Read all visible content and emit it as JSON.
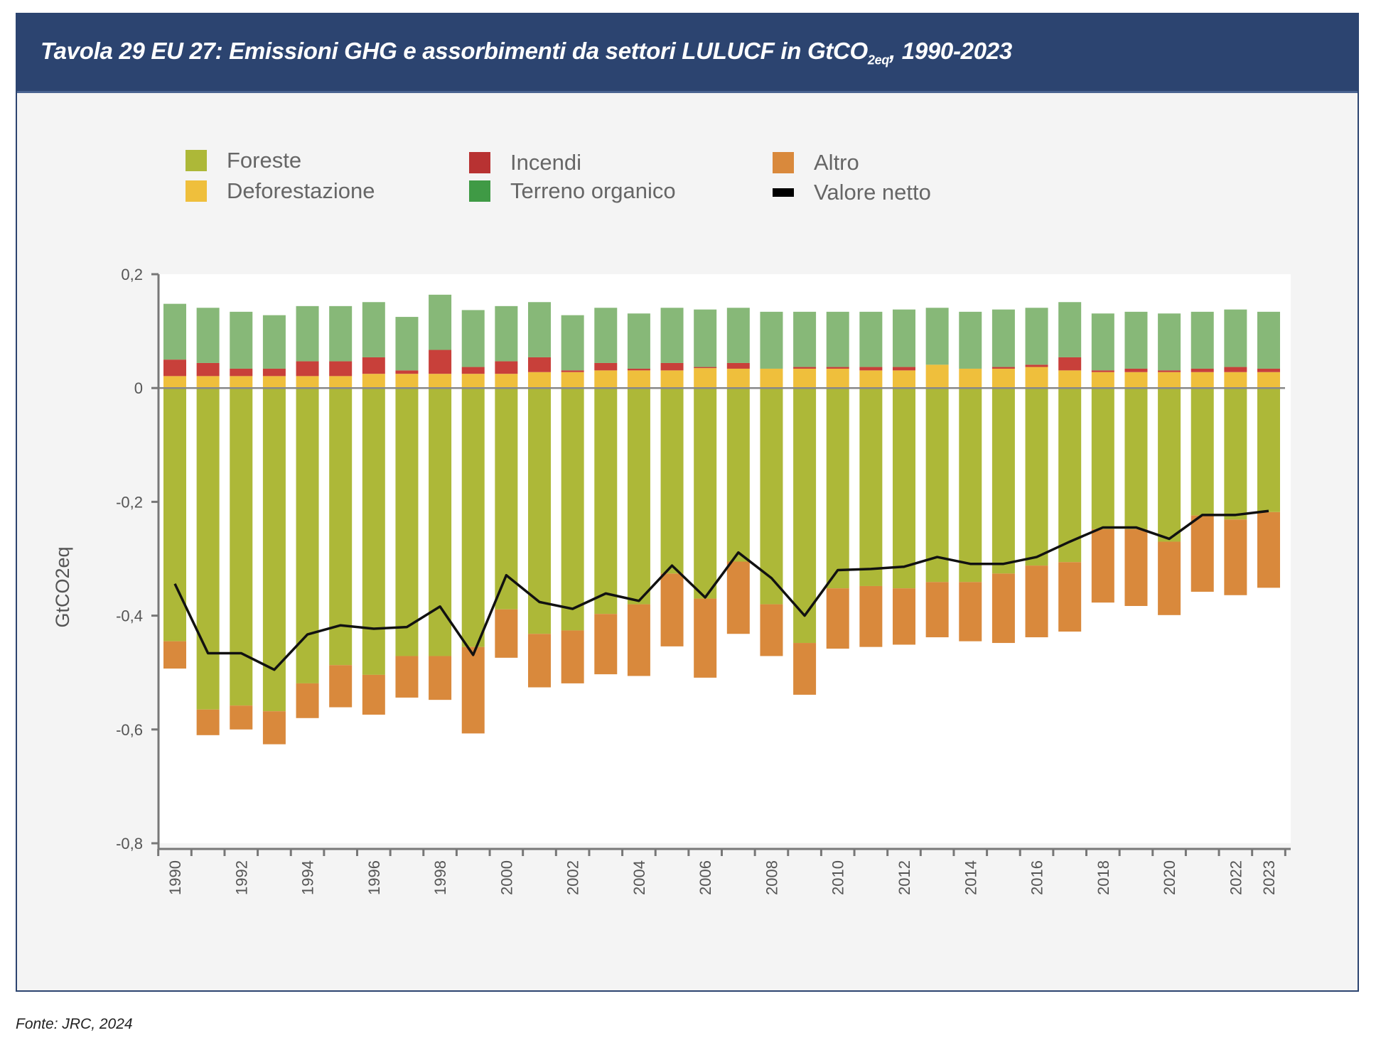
{
  "header": {
    "title_main": "Tavola 29  EU 27: Emissioni GHG e assorbimenti da settori LULUCF in GtCO",
    "title_sub": "2eq",
    "title_end": ", 1990-2023"
  },
  "footer": {
    "source": "Fonte: JRC, 2024"
  },
  "colors": {
    "foreste": "#adb838",
    "deforestazione": "#efbf3c",
    "incendi": "#c8403a",
    "terreno_organico_legend": "#3f9a45",
    "terreno_organico_bar": "#87b878",
    "altro": "#d9893c",
    "valore_netto": "#111111",
    "title_bar": "#2c4470"
  },
  "legend": [
    {
      "key": "foreste",
      "label": "Foreste"
    },
    {
      "key": "deforestazione",
      "label": "Deforestazione"
    },
    {
      "key": "incendi",
      "label": "Incendi"
    },
    {
      "key": "terreno_organico",
      "label": "Terreno organico"
    },
    {
      "key": "altro",
      "label": "Altro"
    },
    {
      "key": "valore_netto",
      "label": "Valore netto"
    }
  ],
  "chart_data": {
    "type": "bar",
    "stacked": true,
    "title": "",
    "xlabel": "",
    "ylabel": "GtCO2eq",
    "ylim": [
      -0.8,
      0.2
    ],
    "yticks": [
      "0,2",
      "0",
      "-0,2",
      "-0,4",
      "-0,6",
      "-0,8"
    ],
    "ytick_values": [
      0.2,
      0,
      -0.2,
      -0.4,
      -0.6,
      -0.8
    ],
    "xtick_labels": [
      "1990",
      "1992",
      "1994",
      "1996",
      "1998",
      "2000",
      "2002",
      "2004",
      "2006",
      "2008",
      "2010",
      "2012",
      "2014",
      "2016",
      "2018",
      "2020",
      "2022",
      "2023"
    ],
    "grid": false,
    "legend_position": "top",
    "categories": [
      1990,
      1991,
      1992,
      1993,
      1994,
      1995,
      1996,
      1997,
      1998,
      1999,
      2000,
      2001,
      2002,
      2003,
      2004,
      2005,
      2006,
      2007,
      2008,
      2009,
      2010,
      2011,
      2012,
      2013,
      2014,
      2015,
      2016,
      2017,
      2018,
      2019,
      2020,
      2021,
      2022,
      2023
    ],
    "series": [
      {
        "name": "Deforestazione",
        "key": "deforestazione",
        "type": "bar",
        "values": [
          0.021,
          0.021,
          0.021,
          0.021,
          0.021,
          0.021,
          0.025,
          0.025,
          0.025,
          0.025,
          0.025,
          0.028,
          0.028,
          0.031,
          0.031,
          0.031,
          0.035,
          0.034,
          0.034,
          0.034,
          0.034,
          0.031,
          0.031,
          0.041,
          0.034,
          0.034,
          0.037,
          0.031,
          0.028,
          0.028,
          0.028,
          0.028,
          0.028,
          0.028
        ]
      },
      {
        "name": "Incendi",
        "key": "incendi",
        "type": "bar",
        "values": [
          0.029,
          0.023,
          0.013,
          0.013,
          0.026,
          0.026,
          0.029,
          0.006,
          0.042,
          0.012,
          0.022,
          0.026,
          0.003,
          0.013,
          0.003,
          0.013,
          0.002,
          0.01,
          0.0,
          0.003,
          0.003,
          0.006,
          0.006,
          0.0,
          0.0,
          0.003,
          0.004,
          0.023,
          0.003,
          0.006,
          0.003,
          0.006,
          0.009,
          0.006
        ]
      },
      {
        "name": "Terreno organico",
        "key": "terreno_organico",
        "type": "bar",
        "values": [
          0.098,
          0.097,
          0.1,
          0.094,
          0.097,
          0.097,
          0.097,
          0.094,
          0.097,
          0.1,
          0.097,
          0.097,
          0.097,
          0.097,
          0.097,
          0.097,
          0.101,
          0.097,
          0.1,
          0.097,
          0.097,
          0.097,
          0.101,
          0.1,
          0.1,
          0.101,
          0.1,
          0.097,
          0.1,
          0.1,
          0.1,
          0.1,
          0.101,
          0.1
        ]
      },
      {
        "name": "Foreste",
        "key": "foreste",
        "type": "bar",
        "values": [
          -0.445,
          -0.565,
          -0.558,
          -0.568,
          -0.519,
          -0.487,
          -0.504,
          -0.471,
          -0.471,
          -0.455,
          -0.389,
          -0.432,
          -0.426,
          -0.397,
          -0.38,
          -0.326,
          -0.37,
          -0.305,
          -0.38,
          -0.448,
          -0.352,
          -0.348,
          -0.352,
          -0.341,
          -0.341,
          -0.326,
          -0.312,
          -0.306,
          -0.248,
          -0.248,
          -0.27,
          -0.224,
          -0.231,
          -0.218
        ]
      },
      {
        "name": "Altro",
        "key": "altro",
        "type": "bar",
        "values": [
          -0.048,
          -0.045,
          -0.042,
          -0.058,
          -0.061,
          -0.074,
          -0.07,
          -0.073,
          -0.077,
          -0.152,
          -0.085,
          -0.094,
          -0.093,
          -0.106,
          -0.126,
          -0.128,
          -0.139,
          -0.127,
          -0.091,
          -0.091,
          -0.106,
          -0.107,
          -0.099,
          -0.097,
          -0.104,
          -0.122,
          -0.126,
          -0.122,
          -0.129,
          -0.135,
          -0.129,
          -0.134,
          -0.133,
          -0.133
        ]
      },
      {
        "name": "Valore netto",
        "key": "valore_netto",
        "type": "line",
        "values": [
          -0.344,
          -0.466,
          -0.466,
          -0.495,
          -0.433,
          -0.417,
          -0.423,
          -0.42,
          -0.384,
          -0.469,
          -0.329,
          -0.376,
          -0.388,
          -0.361,
          -0.374,
          -0.312,
          -0.368,
          -0.289,
          -0.334,
          -0.4,
          -0.32,
          -0.318,
          -0.314,
          -0.297,
          -0.309,
          -0.309,
          -0.297,
          -0.27,
          -0.245,
          -0.245,
          -0.265,
          -0.223,
          -0.223,
          -0.216
        ]
      }
    ]
  }
}
